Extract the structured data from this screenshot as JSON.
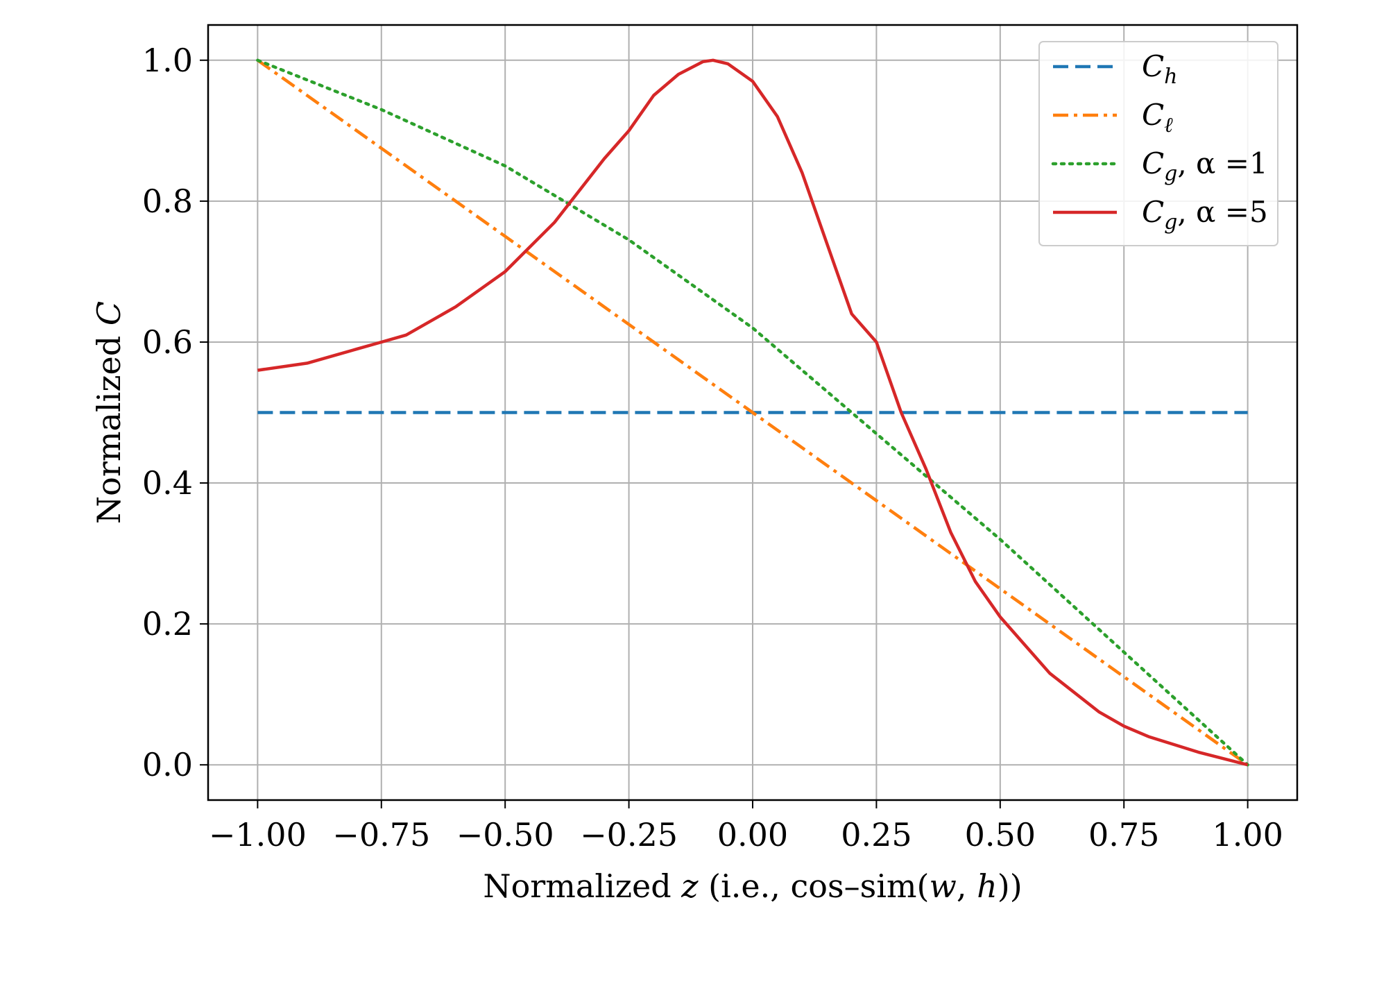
{
  "chart_data": {
    "type": "line",
    "xlabel": {
      "prefix": "Normalized ",
      "var": "z",
      "suffix_open": " (i.e., cos–sim(",
      "arg1": "w",
      "comma": ", ",
      "arg2": "h",
      "suffix_close": "))"
    },
    "ylabel": {
      "prefix": "Normalized ",
      "var": "C"
    },
    "xlim": [
      -1.1,
      1.1
    ],
    "ylim": [
      -0.05,
      1.05
    ],
    "x_ticks": [
      -1.0,
      -0.75,
      -0.5,
      -0.25,
      0.0,
      0.25,
      0.5,
      0.75,
      1.0
    ],
    "x_tick_labels": [
      "−1.00",
      "−0.75",
      "−0.50",
      "−0.25",
      "0.00",
      "0.25",
      "0.50",
      "0.75",
      "1.00"
    ],
    "y_ticks": [
      0.0,
      0.2,
      0.4,
      0.6,
      0.8,
      1.0
    ],
    "y_tick_labels": [
      "0.0",
      "0.2",
      "0.4",
      "0.6",
      "0.8",
      "1.0"
    ],
    "grid": true,
    "legend_position": "top-right",
    "series": [
      {
        "name": "C_h",
        "legend": {
          "base": "C",
          "sub": "h",
          "rest": ""
        },
        "color": "#1f77b4",
        "style": "dashed",
        "x": [
          -1.0,
          1.0
        ],
        "y": [
          0.5,
          0.5
        ]
      },
      {
        "name": "C_ℓ",
        "legend": {
          "base": "C",
          "sub": "ℓ",
          "rest": ""
        },
        "color": "#ff7f0e",
        "style": "dashdot",
        "x": [
          -1.0,
          -0.5,
          0.0,
          0.5,
          1.0
        ],
        "y": [
          1.0,
          0.75,
          0.5,
          0.25,
          0.0
        ]
      },
      {
        "name": "C_g, α =1",
        "legend": {
          "base": "C",
          "sub": "g",
          "rest": ", α =1"
        },
        "color": "#2ca02c",
        "style": "dotted",
        "x": [
          -1.0,
          -0.75,
          -0.5,
          -0.25,
          0.0,
          0.25,
          0.5,
          0.75,
          1.0
        ],
        "y": [
          1.0,
          0.93,
          0.85,
          0.745,
          0.62,
          0.47,
          0.32,
          0.16,
          0.0
        ]
      },
      {
        "name": "C_g, α =5",
        "legend": {
          "base": "C",
          "sub": "g",
          "rest": ", α =5"
        },
        "color": "#d62728",
        "style": "solid",
        "x": [
          -1.0,
          -0.9,
          -0.8,
          -0.75,
          -0.7,
          -0.6,
          -0.5,
          -0.4,
          -0.3,
          -0.25,
          -0.2,
          -0.15,
          -0.1,
          -0.08,
          -0.05,
          0.0,
          0.05,
          0.1,
          0.15,
          0.2,
          0.25,
          0.3,
          0.35,
          0.4,
          0.45,
          0.5,
          0.55,
          0.6,
          0.7,
          0.75,
          0.8,
          0.9,
          1.0
        ],
        "y": [
          0.56,
          0.57,
          0.59,
          0.6,
          0.61,
          0.65,
          0.7,
          0.77,
          0.86,
          0.9,
          0.95,
          0.98,
          0.998,
          1.0,
          0.995,
          0.97,
          0.92,
          0.84,
          0.74,
          0.64,
          0.6,
          0.5,
          0.42,
          0.33,
          0.26,
          0.21,
          0.17,
          0.13,
          0.075,
          0.055,
          0.04,
          0.018,
          0.0
        ]
      }
    ]
  }
}
